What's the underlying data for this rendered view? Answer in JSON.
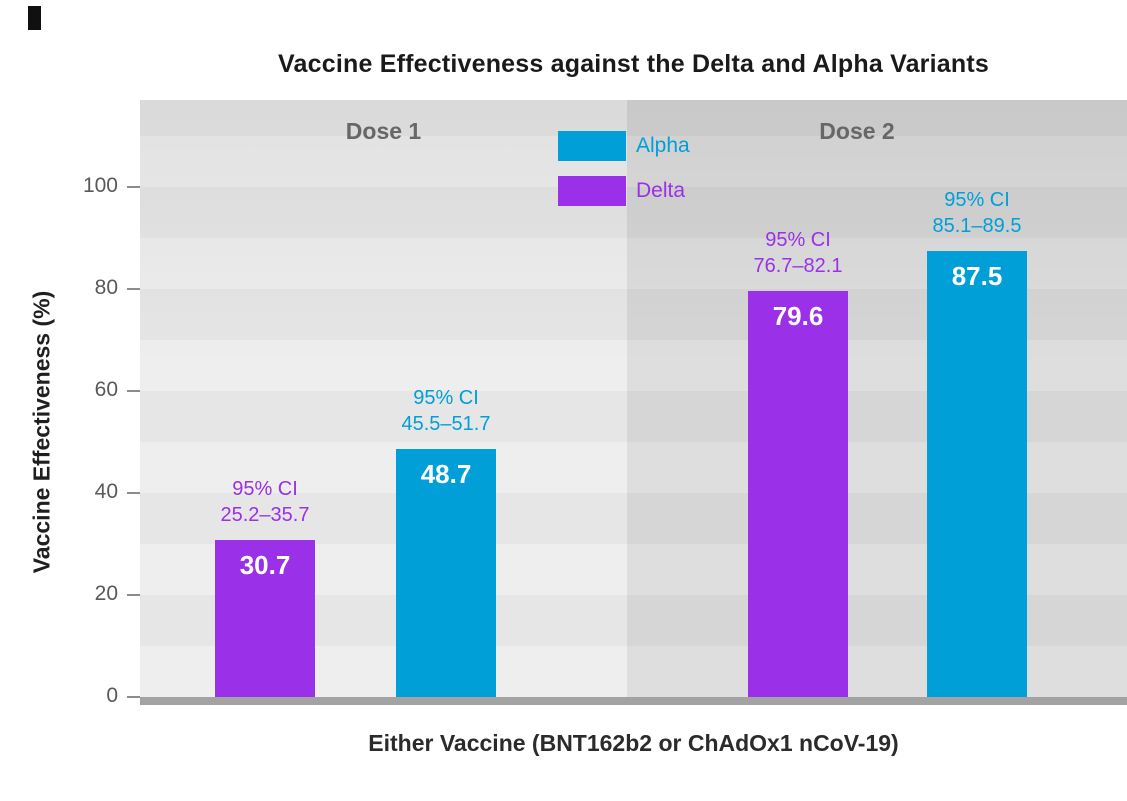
{
  "title": "Vaccine Effectiveness against the Delta and Alpha Variants",
  "colors": {
    "alpha_blue": "#009fd8",
    "delta_purple": "#9a30e8",
    "panel1_bg": "#ececec",
    "panel2_bg": "#dadada",
    "baseline_gray": "#a3a3a3"
  },
  "chart_data": {
    "type": "bar",
    "title": "Vaccine Effectiveness against the Delta and Alpha Variants",
    "xlabel": "Either Vaccine (BNT162b2 or ChAdOx1 nCoV-19)",
    "ylabel": "Vaccine Effectiveness (%)",
    "ylim": [
      0,
      100
    ],
    "yticks": [
      "0",
      "20",
      "40",
      "60",
      "80",
      "100"
    ],
    "grid": "horizontal shaded bands every 10 units",
    "legend_position": "top-center",
    "legend": [
      {
        "label": "Alpha",
        "color": "#009fd8"
      },
      {
        "label": "Delta",
        "color": "#9a30e8"
      }
    ],
    "groups": [
      {
        "label": "Dose 1",
        "bars": [
          {
            "series": "Delta",
            "value": 30.7,
            "value_label": "30.7",
            "ci_label": "95% CI",
            "ci_range": "25.2–35.7",
            "color": "#9a30e8"
          },
          {
            "series": "Alpha",
            "value": 48.7,
            "value_label": "48.7",
            "ci_label": "95% CI",
            "ci_range": "45.5–51.7",
            "color": "#009fd8"
          }
        ]
      },
      {
        "label": "Dose 2",
        "bars": [
          {
            "series": "Delta",
            "value": 79.6,
            "value_label": "79.6",
            "ci_label": "95% CI",
            "ci_range": "76.7–82.1",
            "color": "#9a30e8"
          },
          {
            "series": "Alpha",
            "value": 87.5,
            "value_label": "87.5",
            "ci_label": "95% CI",
            "ci_range": "85.1–89.5",
            "color": "#009fd8"
          }
        ]
      }
    ]
  }
}
